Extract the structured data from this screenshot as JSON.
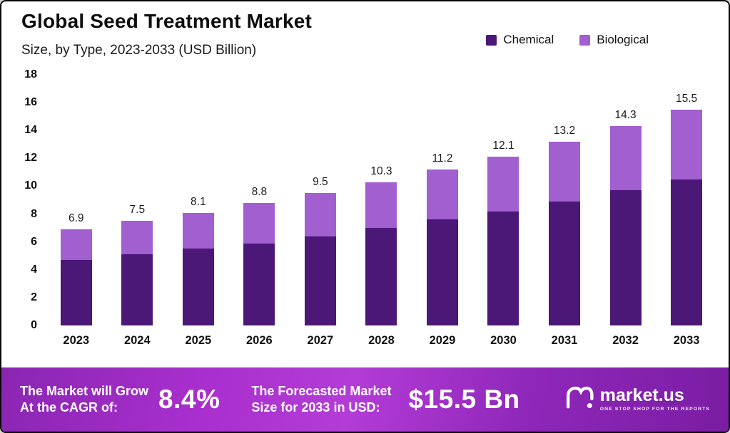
{
  "header": {
    "title": "Global Seed Treatment Market",
    "subtitle": "Size, by Type, 2023-2033 (USD Billion)"
  },
  "legend": [
    {
      "label": "Chemical",
      "color": "#4b1878"
    },
    {
      "label": "Biological",
      "color": "#a15fd0"
    }
  ],
  "chart_data": {
    "type": "bar",
    "stacked": true,
    "title": "Global Seed Treatment Market Size, by Type, 2023-2033 (USD Billion)",
    "categories": [
      "2023",
      "2024",
      "2025",
      "2026",
      "2027",
      "2028",
      "2029",
      "2030",
      "2031",
      "2032",
      "2033"
    ],
    "series": [
      {
        "name": "Chemical",
        "color": "#4b1878",
        "values": [
          4.7,
          5.1,
          5.5,
          5.9,
          6.4,
          7.0,
          7.6,
          8.2,
          8.9,
          9.7,
          10.5
        ]
      },
      {
        "name": "Biological",
        "color": "#a15fd0",
        "values": [
          2.2,
          2.4,
          2.6,
          2.9,
          3.1,
          3.3,
          3.6,
          3.9,
          4.3,
          4.6,
          5.0
        ]
      }
    ],
    "totals": [
      6.9,
      7.5,
      8.1,
      8.8,
      9.5,
      10.3,
      11.2,
      12.1,
      13.2,
      14.3,
      15.5
    ],
    "ylabel": "",
    "xlabel": "",
    "ylim": [
      0,
      18
    ],
    "ytick_step": 2,
    "grid": false,
    "legend_position": "top-right"
  },
  "footer": {
    "cagr_label_line1": "The Market will Grow",
    "cagr_label_line2": "At the CAGR of:",
    "cagr_value": "8.4%",
    "forecast_label_line1": "The Forecasted Market",
    "forecast_label_line2": "Size for 2033 in USD:",
    "forecast_value": "$15.5 Bn",
    "brand_name": "market.us",
    "brand_tagline": "ONE STOP SHOP FOR THE REPORTS"
  }
}
